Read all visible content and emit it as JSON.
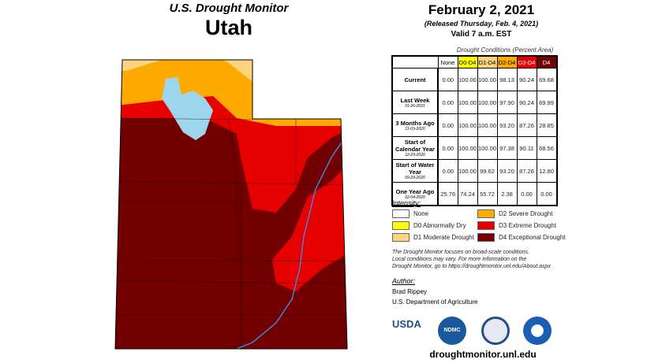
{
  "header": {
    "title": "U.S. Drought Monitor",
    "state": "Utah"
  },
  "info": {
    "date": "February 2, 2021",
    "released": "(Released Thursday, Feb. 4, 2021)",
    "valid": "Valid 7 a.m. EST"
  },
  "table": {
    "caption": "Drought Conditions (Percent Area)",
    "columns": [
      "None",
      "D0-D4",
      "D1-D4",
      "D2-D4",
      "D3-D4",
      "D4"
    ],
    "column_colors": [
      "#ffffff",
      "#ffff00",
      "#fcd37f",
      "#ffaa00",
      "#e60000",
      "#730000"
    ],
    "rows": [
      {
        "label": "Current",
        "date": "",
        "values": [
          "0.00",
          "100.00",
          "100.00",
          "98.13",
          "90.24",
          "69.68"
        ]
      },
      {
        "label": "Last Week",
        "date": "01-26-2021",
        "values": [
          "0.00",
          "100.00",
          "100.00",
          "97.90",
          "90.24",
          "69.99"
        ]
      },
      {
        "label": "3 Months Ago",
        "date": "11-03-2020",
        "values": [
          "0.00",
          "100.00",
          "100.00",
          "93.20",
          "87.26",
          "28.85"
        ]
      },
      {
        "label": "Start of Calendar Year",
        "date": "12-29-2020",
        "values": [
          "0.00",
          "100.00",
          "100.00",
          "97.38",
          "90.11",
          "68.56"
        ]
      },
      {
        "label": "Start of Water Year",
        "date": "09-29-2020",
        "values": [
          "0.00",
          "100.00",
          "99.62",
          "93.20",
          "87.26",
          "12.80"
        ]
      },
      {
        "label": "One Year Ago",
        "date": "02-04-2020",
        "values": [
          "25.76",
          "74.24",
          "55.72",
          "2.38",
          "0.00",
          "0.00"
        ]
      }
    ]
  },
  "legend": {
    "title": "Intensity:",
    "items": [
      {
        "label": "None",
        "color": "#ffffff"
      },
      {
        "label": "D0 Abnormally Dry",
        "color": "#ffff00"
      },
      {
        "label": "D1 Moderate Drought",
        "color": "#fcd37f"
      },
      {
        "label": "D2 Severe Drought",
        "color": "#ffaa00"
      },
      {
        "label": "D3 Extreme Drought",
        "color": "#e60000"
      },
      {
        "label": "D4 Exceptional Drought",
        "color": "#730000"
      }
    ]
  },
  "note": [
    "The Drought Monitor focuses on broad-scale conditions.",
    "Local conditions may vary. For more information on the",
    "Drought Monitor, go to https://droughtmonitor.unl.edu/About.aspx"
  ],
  "author": {
    "title": "Author:",
    "name": "Brad Rippey",
    "org": "U.S. Department of Agriculture"
  },
  "logos": [
    "USDA",
    "NDMC",
    "DOC",
    "NOAA"
  ],
  "url": "droughtmonitor.unl.edu"
}
